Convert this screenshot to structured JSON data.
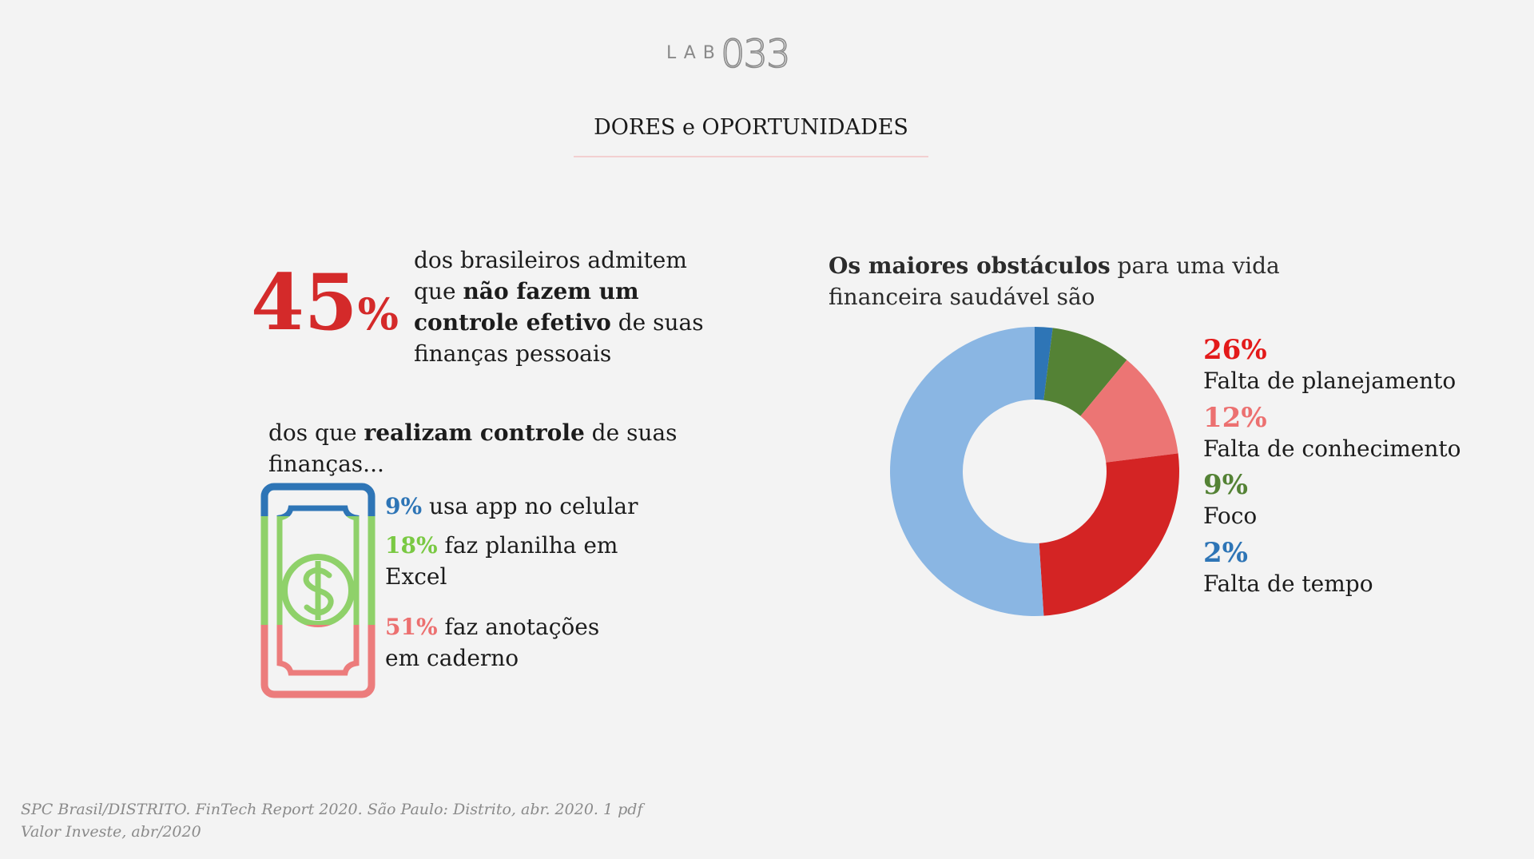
{
  "header": {
    "logo_lab": "LAB",
    "logo_num": "033",
    "title": "DORES e OPORTUNIDADES"
  },
  "left": {
    "big_value": "45",
    "big_unit": "%",
    "stat_parts": [
      "dos brasileiros admitem que ",
      "não fazem um controle efetivo",
      " de suas finanças pessoais"
    ],
    "intro_parts": [
      "dos que ",
      "realizam controle",
      " de suas finanças..."
    ],
    "icon": "money-bill-dollar-icon",
    "usage": [
      {
        "pct": "9%",
        "text": "usa app no celular",
        "color": "#2e75b6"
      },
      {
        "pct": "18%",
        "text": "faz planilha em Excel",
        "color": "#7ac943"
      },
      {
        "pct": "51%",
        "text": "faz anotações em caderno",
        "color": "#ec7070"
      }
    ]
  },
  "right": {
    "title_parts": [
      "Os maiores obstáculos",
      " para uma vida financeira saudável são"
    ]
  },
  "chart_data": {
    "type": "pie",
    "donut": true,
    "start": "top",
    "direction": "clockwise",
    "slices": [
      {
        "label": "Falta de tempo",
        "value": 2,
        "color": "#2e75b6",
        "pct_label": "2%"
      },
      {
        "label": "Foco",
        "value": 9,
        "color": "#548235",
        "pct_label": "9%"
      },
      {
        "label": "Falta de conhecimento",
        "value": 12,
        "color": "#ec7574",
        "pct_label": "12%"
      },
      {
        "label": "Falta de planejamento",
        "value": 26,
        "color": "#d42424",
        "pct_label": "26%"
      },
      {
        "value": 51,
        "color": "#8ab6e3"
      }
    ],
    "legend": [
      {
        "pct": "26%",
        "label": "Falta de planejamento",
        "color": "#e31a1a"
      },
      {
        "pct": "12%",
        "label": "Falta de conhecimento",
        "color": "#ec7070"
      },
      {
        "pct": "9%",
        "label": "Foco",
        "color": "#548235"
      },
      {
        "pct": "2%",
        "label": "Falta de tempo",
        "color": "#2e75b6"
      }
    ],
    "legend_position": "right"
  },
  "source": {
    "lines": [
      "SPC Brasil/DISTRITO. FinTech Report 2020. São Paulo: Distrito, abr. 2020. 1 pdf",
      "Valor Investe, abr/2020"
    ]
  }
}
